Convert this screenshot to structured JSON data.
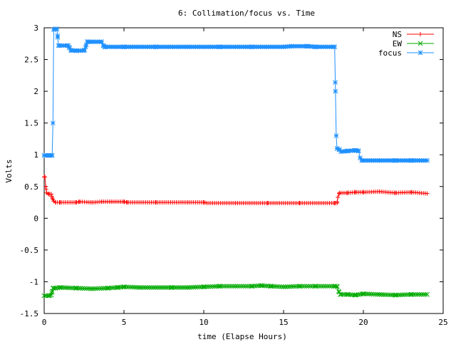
{
  "chart_data": {
    "type": "line",
    "title": "6: Collimation/focus vs. Time",
    "xlabel": "time (Elapse Hours)",
    "ylabel": "Volts",
    "xlim": [
      0,
      25
    ],
    "ylim": [
      -1.5,
      3
    ],
    "xticks": [
      "0",
      "5",
      "10",
      "15",
      "20",
      "25"
    ],
    "xtick_values": [
      0,
      5,
      10,
      15,
      20,
      25
    ],
    "yticks": [
      "-1.5",
      "-1",
      "-0.5",
      "0",
      "0.5",
      "1",
      "1.5",
      "2",
      "2.5",
      "3"
    ],
    "ytick_values": [
      -1.5,
      -1,
      -0.5,
      0,
      0.5,
      1,
      1.5,
      2,
      2.5,
      3
    ],
    "grid": false,
    "legend_position": "top-right",
    "series": [
      {
        "name": "NS",
        "color": "#ff0000",
        "marker": "plus",
        "points": [
          [
            0.0,
            0.65
          ],
          [
            0.05,
            0.65
          ],
          [
            0.1,
            0.5
          ],
          [
            0.15,
            0.4
          ],
          [
            0.3,
            0.38
          ],
          [
            0.45,
            0.38
          ],
          [
            0.5,
            0.32
          ],
          [
            0.55,
            0.3
          ],
          [
            0.6,
            0.27
          ],
          [
            0.7,
            0.25
          ],
          [
            1.0,
            0.25
          ],
          [
            2.0,
            0.25
          ],
          [
            2.2,
            0.26
          ],
          [
            3.0,
            0.25
          ],
          [
            3.6,
            0.26
          ],
          [
            4.2,
            0.26
          ],
          [
            5.0,
            0.26
          ],
          [
            5.2,
            0.25
          ],
          [
            7.0,
            0.25
          ],
          [
            9.0,
            0.25
          ],
          [
            10.0,
            0.25
          ],
          [
            10.2,
            0.24
          ],
          [
            12.0,
            0.24
          ],
          [
            14.0,
            0.24
          ],
          [
            16.0,
            0.24
          ],
          [
            18.2,
            0.24
          ],
          [
            18.35,
            0.24
          ],
          [
            18.4,
            0.33
          ],
          [
            18.5,
            0.4
          ],
          [
            19.0,
            0.4
          ],
          [
            19.5,
            0.41
          ],
          [
            20.0,
            0.41
          ],
          [
            21.0,
            0.42
          ],
          [
            22.0,
            0.4
          ],
          [
            23.0,
            0.41
          ],
          [
            24.0,
            0.39
          ]
        ]
      },
      {
        "name": "EW",
        "color": "#00aa00",
        "marker": "cross",
        "points": [
          [
            0.0,
            -1.22
          ],
          [
            0.3,
            -1.22
          ],
          [
            0.45,
            -1.21
          ],
          [
            0.5,
            -1.15
          ],
          [
            0.55,
            -1.1
          ],
          [
            0.7,
            -1.1
          ],
          [
            1.0,
            -1.09
          ],
          [
            2.0,
            -1.1
          ],
          [
            3.0,
            -1.11
          ],
          [
            4.0,
            -1.1
          ],
          [
            4.6,
            -1.09
          ],
          [
            5.0,
            -1.08
          ],
          [
            6.0,
            -1.09
          ],
          [
            8.0,
            -1.09
          ],
          [
            9.0,
            -1.09
          ],
          [
            10.0,
            -1.08
          ],
          [
            11.0,
            -1.07
          ],
          [
            12.0,
            -1.07
          ],
          [
            13.0,
            -1.07
          ],
          [
            13.6,
            -1.06
          ],
          [
            14.2,
            -1.07
          ],
          [
            15.0,
            -1.08
          ],
          [
            16.0,
            -1.07
          ],
          [
            17.0,
            -1.07
          ],
          [
            18.2,
            -1.07
          ],
          [
            18.35,
            -1.07
          ],
          [
            18.45,
            -1.15
          ],
          [
            18.55,
            -1.2
          ],
          [
            19.0,
            -1.2
          ],
          [
            19.5,
            -1.21
          ],
          [
            20.0,
            -1.19
          ],
          [
            21.0,
            -1.2
          ],
          [
            22.0,
            -1.21
          ],
          [
            23.0,
            -1.2
          ],
          [
            24.0,
            -1.2
          ]
        ]
      },
      {
        "name": "focus",
        "color": "#1e90ff",
        "marker": "star",
        "points": [
          [
            0.0,
            0.99
          ],
          [
            0.3,
            0.99
          ],
          [
            0.5,
            0.99
          ],
          [
            0.55,
            1.5
          ],
          [
            0.6,
            2.97
          ],
          [
            0.7,
            2.98
          ],
          [
            0.8,
            2.98
          ],
          [
            0.85,
            2.85
          ],
          [
            0.9,
            2.72
          ],
          [
            1.5,
            2.72
          ],
          [
            1.6,
            2.68
          ],
          [
            1.7,
            2.64
          ],
          [
            2.0,
            2.64
          ],
          [
            2.5,
            2.64
          ],
          [
            2.6,
            2.7
          ],
          [
            2.7,
            2.78
          ],
          [
            3.0,
            2.78
          ],
          [
            3.6,
            2.78
          ],
          [
            3.7,
            2.72
          ],
          [
            3.8,
            2.7
          ],
          [
            5.0,
            2.7
          ],
          [
            7.0,
            2.7
          ],
          [
            9.0,
            2.7
          ],
          [
            11.0,
            2.7
          ],
          [
            13.0,
            2.7
          ],
          [
            15.0,
            2.7
          ],
          [
            15.5,
            2.71
          ],
          [
            16.5,
            2.71
          ],
          [
            17.0,
            2.7
          ],
          [
            18.2,
            2.7
          ],
          [
            18.25,
            2.0
          ],
          [
            18.3,
            1.3
          ],
          [
            18.35,
            1.1
          ],
          [
            18.5,
            1.08
          ],
          [
            18.6,
            1.05
          ],
          [
            19.0,
            1.06
          ],
          [
            19.5,
            1.07
          ],
          [
            19.7,
            1.06
          ],
          [
            19.8,
            0.95
          ],
          [
            19.9,
            0.91
          ],
          [
            21.0,
            0.91
          ],
          [
            22.0,
            0.91
          ],
          [
            23.0,
            0.91
          ],
          [
            24.0,
            0.91
          ]
        ]
      }
    ]
  }
}
